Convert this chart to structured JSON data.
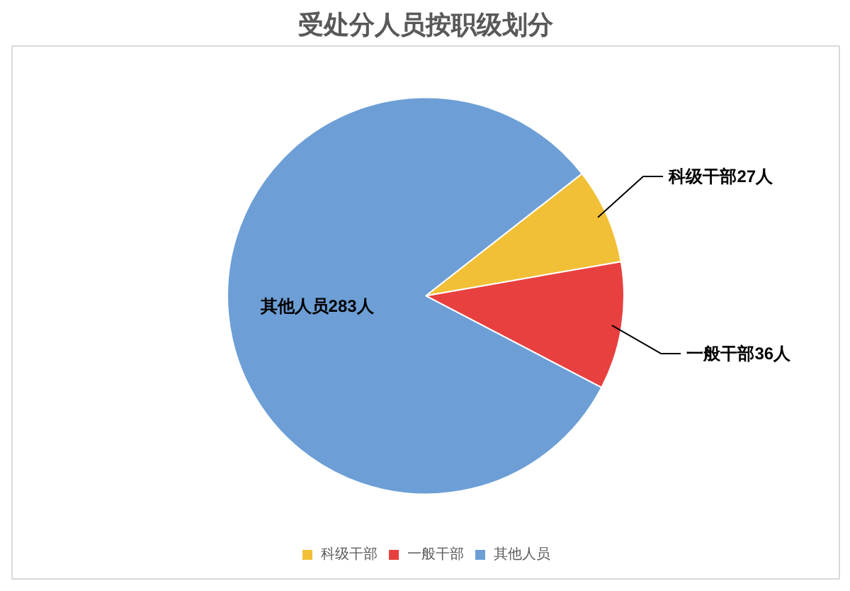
{
  "chart_data": {
    "type": "pie",
    "title": "受处分人员按职级划分",
    "categories": [
      "科级干部",
      "一般干部",
      "其他人员"
    ],
    "values": [
      27,
      36,
      283
    ],
    "colors": [
      "#f2c037",
      "#e8403f",
      "#6d9fd6"
    ],
    "value_labels": [
      "科级干部27人",
      "一般干部36人",
      "其他人员283人"
    ],
    "legend": "bottom"
  }
}
